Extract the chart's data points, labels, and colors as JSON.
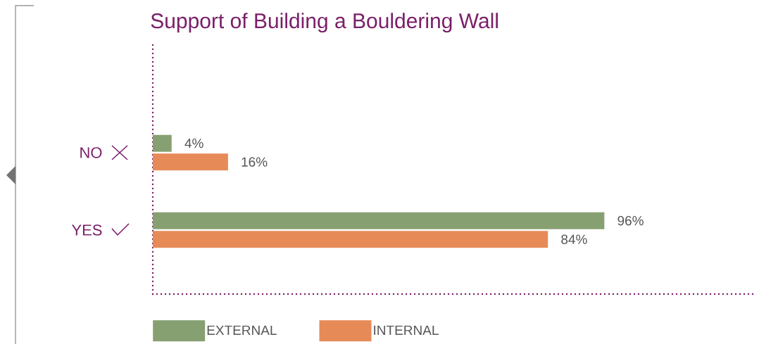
{
  "chart_data": {
    "type": "bar",
    "orientation": "horizontal",
    "title": "Support of Building a Bouldering Wall",
    "categories": [
      "NO",
      "YES"
    ],
    "tick_labels": "y",
    "legend": "bottom",
    "series": [
      {
        "name": "EXTERNAL",
        "color": "#87a072",
        "values": [
          4,
          96
        ],
        "value_labels": [
          "4%",
          "96%"
        ]
      },
      {
        "name": "INTERNAL",
        "color": "#e68b58",
        "values": [
          16,
          84
        ],
        "value_labels": [
          "16%",
          "84%"
        ]
      }
    ]
  }
}
